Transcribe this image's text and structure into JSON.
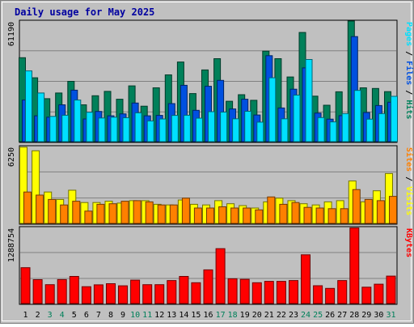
{
  "chart_data": {
    "type": "bar",
    "title": "Daily usage for May 2025",
    "categories": [
      "1",
      "2",
      "3",
      "4",
      "5",
      "6",
      "7",
      "8",
      "9",
      "10",
      "11",
      "12",
      "13",
      "14",
      "15",
      "16",
      "17",
      "18",
      "19",
      "20",
      "21",
      "22",
      "23",
      "24",
      "25",
      "26",
      "27",
      "28",
      "29",
      "30",
      "31"
    ],
    "weekend_days": [
      "3",
      "4",
      "10",
      "11",
      "17",
      "18",
      "24",
      "25",
      "31"
    ],
    "panels": [
      {
        "name": "pages-files-hits",
        "max_label": "61190",
        "ylim": [
          0,
          61190
        ],
        "legend": [
          {
            "text": "Pages",
            "color": "#00e0ff"
          },
          {
            "text": " / ",
            "color": "#000000"
          },
          {
            "text": "Files",
            "color": "#0050e0"
          },
          {
            "text": " / ",
            "color": "#000000"
          },
          {
            "text": "Hits",
            "color": "#00805a"
          }
        ],
        "series": [
          {
            "name": "Hits",
            "color": "#00805a",
            "values": [
              42600,
              32400,
              21800,
              24700,
              30600,
              18700,
              23300,
              25500,
              21500,
              28300,
              18000,
              27300,
              33900,
              40400,
              24400,
              36400,
              42100,
              20500,
              23800,
              21000,
              45900,
              42100,
              32800,
              55400,
              23100,
              18500,
              25300,
              62000,
              27300,
              27000,
              25400
            ]
          },
          {
            "name": "Files",
            "color": "#0050e0",
            "values": [
              21100,
              13100,
              12400,
              18700,
              26100,
              11500,
              15300,
              13100,
              14100,
              19600,
              13100,
              13300,
              19300,
              28600,
              15900,
              28100,
              31100,
              16600,
              21500,
              13500,
              43600,
              17100,
              26600,
              37400,
              14500,
              11400,
              13200,
              53300,
              14800,
              18300,
              20000
            ]
          },
          {
            "name": "Pages",
            "color": "#00e0ff",
            "values": [
              35900,
              24700,
              12800,
              13400,
              21100,
              14900,
              12000,
              12400,
              12100,
              14600,
              10500,
              11500,
              13300,
              13400,
              11900,
              15200,
              15000,
              11600,
              15400,
              9900,
              32400,
              11600,
              23600,
              41700,
              12200,
              10000,
              14200,
              26000,
              11400,
              14200,
              23000
            ]
          }
        ]
      },
      {
        "name": "sites-visits",
        "max_label": "6250",
        "ylim": [
          0,
          6250
        ],
        "legend": [
          {
            "text": "Sites",
            "color": "#ff8000"
          },
          {
            "text": " / ",
            "color": "#000000"
          },
          {
            "text": "Visits",
            "color": "#ffff00"
          }
        ],
        "series": [
          {
            "name": "Visits",
            "color": "#ffff00",
            "values": [
              6200,
              5900,
              2550,
              1950,
              2700,
              1700,
              1700,
              1800,
              1650,
              1850,
              1850,
              1550,
              1500,
              1900,
              1550,
              1500,
              1850,
              1600,
              1450,
              1250,
              1750,
              2050,
              1850,
              1600,
              1500,
              1750,
              1850,
              3450,
              1750,
              2650,
              4050
            ]
          },
          {
            "name": "Sites",
            "color": "#ff8000",
            "values": [
              2550,
              2300,
              1950,
              1500,
              1800,
              1000,
              1550,
              1600,
              1800,
              1850,
              1750,
              1500,
              1500,
              2050,
              1250,
              1250,
              1350,
              1250,
              1250,
              1100,
              2150,
              1550,
              1700,
              1300,
              1250,
              1200,
              1200,
              2750,
              1950,
              1850,
              2200
            ]
          }
        ]
      },
      {
        "name": "kbytes",
        "max_label": "1288754",
        "ylim": [
          0,
          1288754
        ],
        "legend": [
          {
            "text": "KBytes",
            "color": "#ff0000"
          }
        ],
        "series": [
          {
            "name": "KBytes",
            "color": "#ff0000",
            "values": [
              608000,
              404000,
              320000,
              406000,
              459000,
              285000,
              317000,
              336000,
              300000,
              396000,
              320000,
              320000,
              390000,
              459000,
              353000,
              570000,
              929000,
              420000,
              410000,
              353000,
              375000,
              375000,
              390000,
              825000,
              302000,
              256000,
              390000,
              1280000,
              277000,
              327000,
              465000
            ]
          }
        ]
      }
    ]
  }
}
